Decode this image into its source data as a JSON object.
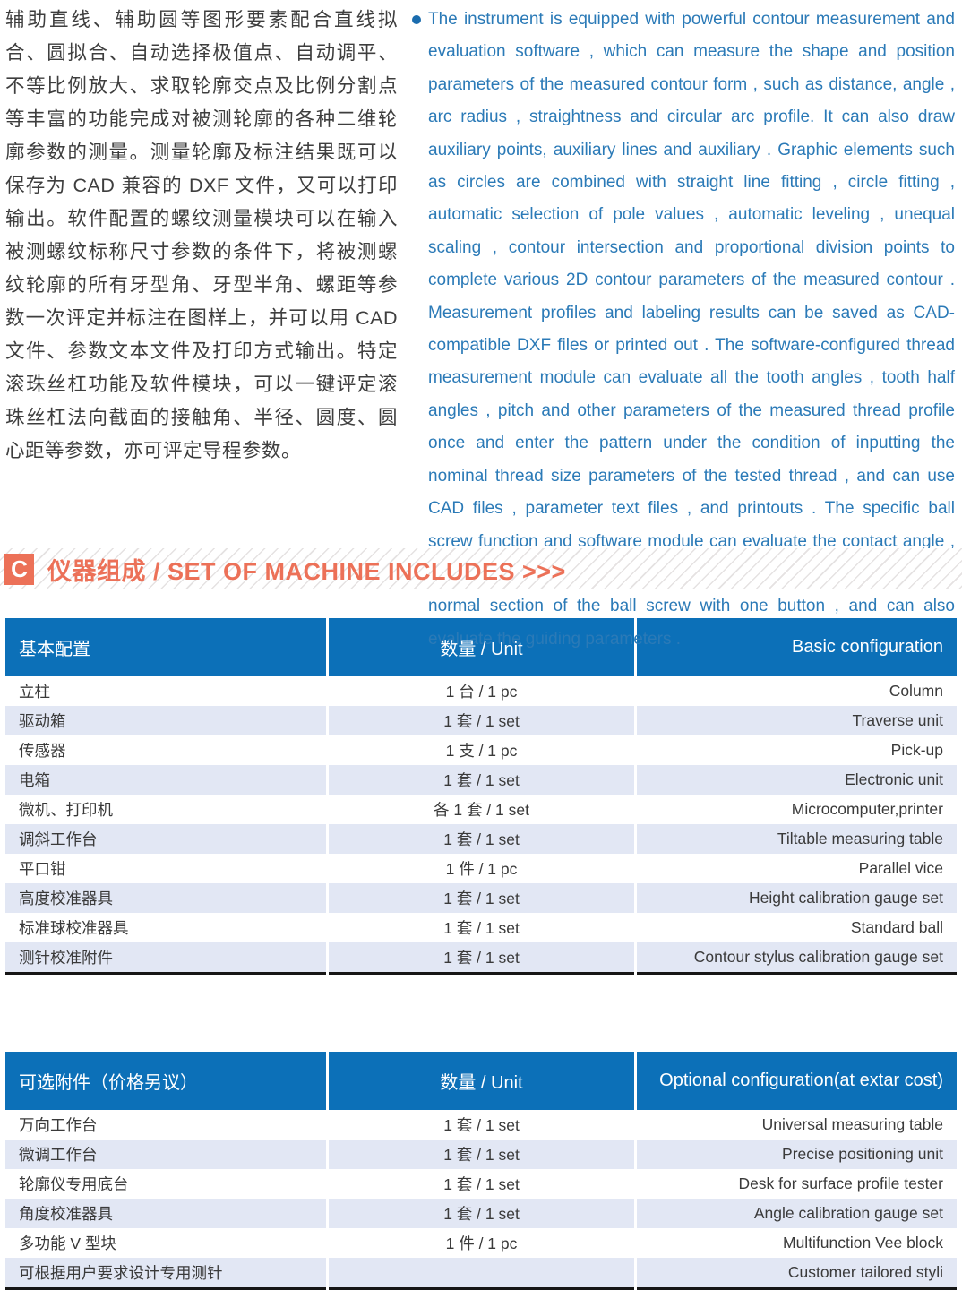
{
  "intro": {
    "zh": "辅助直线、辅助圆等图形要素配合直线拟合、圆拟合、自动选择极值点、自动调平、不等比例放大、求取轮廓交点及比例分割点等丰富的功能完成对被测轮廓的各种二维轮廓参数的测量。测量轮廓及标注结果既可以保存为 CAD 兼容的 DXF 文件，又可以打印输出。软件配置的螺纹测量模块可以在输入被测螺纹标称尺寸参数的条件下，将被测螺纹轮廓的所有牙型角、牙型半角、螺距等参数一次评定并标注在图样上，并可以用 CAD 文件、参数文本文件及打印方式输出。特定滚珠丝杠功能及软件模块，可以一键评定滚珠丝杠法向截面的接触角、半径、圆度、圆心距等参数，亦可评定导程参数。",
    "en": "The instrument is equipped with powerful contour measurement and evaluation software , which can measure the shape and position parameters of the measured contour form , such as distance, angle , arc radius , straightness and circular arc profile. It can also draw auxiliary points, auxiliary lines and auxiliary . Graphic elements such as circles are combined with straight line fitting , circle fitting , automatic selection of pole values , automatic leveling , unequal scaling , contour intersection and proportional division points to complete various 2D contour parameters of the measured contour . Measurement profiles and labeling results can be saved as CAD-compatible DXF files or printed out . The software-configured thread measurement module can evaluate all the tooth angles , tooth half angles , pitch and other parameters of the measured thread profile once and enter the pattern under the condition of inputting the nominal thread size parameters of the tested thread , and can use CAD files , parameter text files , and printouts . The specific ball screw function and software module can evaluate the contact angle , radius , roundness , center distance and other parameters of the normal section of the ball screw with one button , and can also evaluate the guiding parameters ."
  },
  "section": {
    "badge": "C",
    "title": "仪器组成 / SET OF MACHINE INCLUDES >>>"
  },
  "tables": [
    {
      "headers": [
        "基本配置",
        "数量 / Unit",
        "Basic configuration"
      ],
      "rows": [
        [
          "立柱",
          "1 台 / 1 pc",
          "Column"
        ],
        [
          "驱动箱",
          "1 套 / 1 set",
          "Traverse unit"
        ],
        [
          "传感器",
          "1 支 / 1 pc",
          "Pick-up"
        ],
        [
          "电箱",
          "1 套 / 1 set",
          "Electronic unit"
        ],
        [
          "微机、打印机",
          "各 1 套 / 1 set",
          "Microcomputer,printer"
        ],
        [
          "调斜工作台",
          "1 套 / 1 set",
          "Tiltable measuring table"
        ],
        [
          "平口钳",
          "1 件 / 1 pc",
          "Parallel vice"
        ],
        [
          "高度校准器具",
          "1 套 / 1 set",
          "Height calibration gauge set"
        ],
        [
          "标准球校准器具",
          "1 套 / 1 set",
          "Standard ball"
        ],
        [
          "测针校准附件",
          "1 套 / 1 set",
          "Contour stylus calibration gauge set"
        ]
      ]
    },
    {
      "headers": [
        "可选附件（价格另议）",
        "数量 / Unit",
        "Optional configuration(at extar cost)"
      ],
      "rows": [
        [
          "万向工作台",
          "1 套 / 1 set",
          "Universal measuring table"
        ],
        [
          "微调工作台",
          "1 套 / 1 set",
          "Precise positioning unit"
        ],
        [
          "轮廓仪专用底台",
          "1 套 / 1 set",
          "Desk for surface profile tester"
        ],
        [
          "角度校准器具",
          "1 套 / 1 set",
          "Angle calibration gauge set"
        ],
        [
          "多功能 V 型块",
          "1 件 / 1 pc",
          "Multifunction Vee block"
        ],
        [
          "可根据用户要求设计专用测针",
          "",
          "Customer tailored styli"
        ]
      ]
    }
  ],
  "colors": {
    "table_header_blue": "#0c70b8",
    "row_alt_blue": "#e2e7f4",
    "accent_orange": "#ec7158",
    "english_text_blue": "#2b7ab7",
    "bullet_blue": "#1a6cae",
    "body_text": "#3a3a3a"
  }
}
